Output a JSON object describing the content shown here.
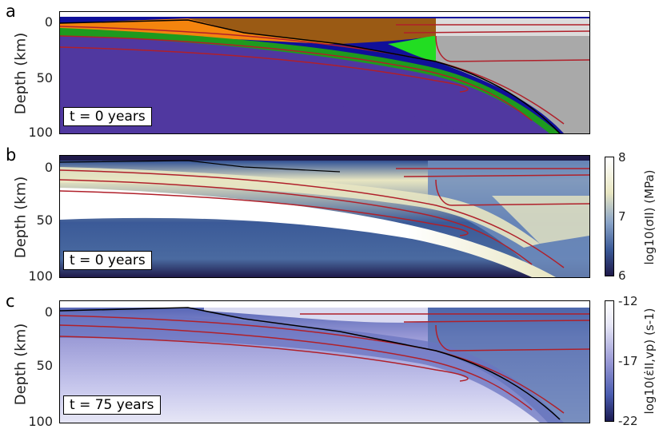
{
  "chart_data": [
    {
      "panel": "a",
      "type": "heatmap",
      "ylabel": "Depth (km)",
      "yticks": [
        "0",
        "50",
        "100"
      ],
      "ylim": [
        100,
        -5
      ],
      "annotation": "t = 0 years",
      "field": "material phases",
      "colors": [
        "#f4840e",
        "#9a5a14",
        "#1e9a1e",
        "#22dd22",
        "#10109a",
        "#5038a0",
        "#a9a9a9",
        "#dcdcdc"
      ],
      "contour_color": "#b0202a"
    },
    {
      "panel": "b",
      "type": "heatmap",
      "ylabel": "Depth (km)",
      "yticks": [
        "0",
        "50",
        "100"
      ],
      "ylim": [
        100,
        -5
      ],
      "annotation": "t = 0 years",
      "colorbar": {
        "label": "log10(σII) (MPa)",
        "ticks": [
          "8",
          "7",
          "6"
        ],
        "range": [
          6,
          8
        ]
      },
      "colormap": [
        "#1f1a4a",
        "#3b5a98",
        "#8aa4c8",
        "#e8e6c2",
        "#ffffff"
      ],
      "contour_color": "#b0202a"
    },
    {
      "panel": "c",
      "type": "heatmap",
      "ylabel": "Depth (km)",
      "yticks": [
        "0",
        "50",
        "100"
      ],
      "ylim": [
        100,
        -5
      ],
      "annotation": "t = 75 years",
      "colorbar": {
        "label": "log10(ε̇II,vp) (s-1)",
        "ticks": [
          "-12",
          "-17",
          "-22"
        ],
        "range": [
          -22,
          -12
        ]
      },
      "colormap": [
        "#1a1a50",
        "#4a5cb0",
        "#9a9ad6",
        "#e6e6f6",
        "#ffffff"
      ],
      "contour_color": "#b0202a"
    }
  ],
  "labels": {
    "panel_a": "a",
    "panel_b": "b",
    "panel_c": "c",
    "ylabel": "Depth (km)",
    "tick_0": "0",
    "tick_50": "50",
    "tick_100": "100",
    "t_a": "t = 0 years",
    "t_b": "t = 0 years",
    "t_c": "t = 75 years",
    "cb1_label": "log10(σII) (MPa)",
    "cb1_8": "8",
    "cb1_7": "7",
    "cb1_6": "6",
    "cb2_label": "log10(ε̇II,vp) (s-1)",
    "cb2_m12": "-12",
    "cb2_m17": "-17",
    "cb2_m22": "-22"
  }
}
